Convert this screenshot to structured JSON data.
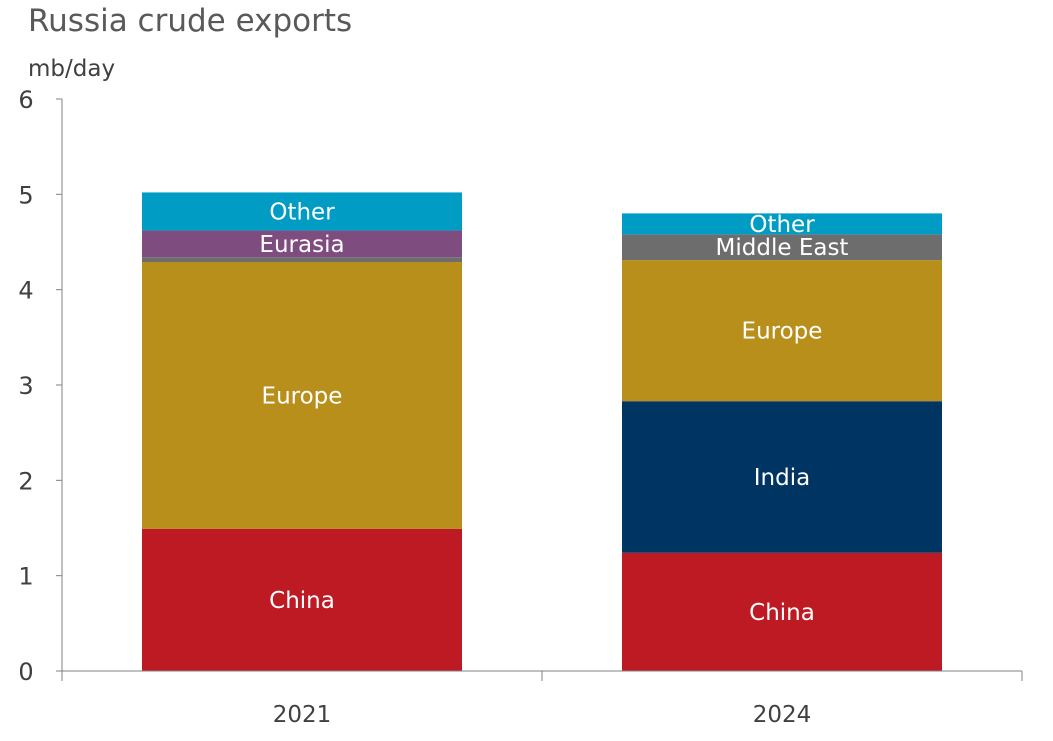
{
  "chart_data": {
    "type": "bar",
    "stacked": true,
    "title": "Russia crude exports",
    "unit_label": "mb/day",
    "ylim": [
      0,
      6
    ],
    "yticks": [
      "0",
      "1",
      "2",
      "3",
      "4",
      "5",
      "6"
    ],
    "grid": false,
    "categories": [
      "2021",
      "2024"
    ],
    "series": [
      {
        "name": "China",
        "color": "#BE1A24",
        "values": [
          1.49,
          1.24
        ]
      },
      {
        "name": "India",
        "color": "#003463",
        "values": [
          0.0,
          1.59
        ]
      },
      {
        "name": "Europe",
        "color": "#B98F1B",
        "values": [
          2.8,
          1.48
        ]
      },
      {
        "name": "Middle East",
        "color": "#6D6D6D",
        "values": [
          0.05,
          0.27
        ]
      },
      {
        "name": "Eurasia",
        "color": "#7F4C80",
        "values": [
          0.28,
          0.0
        ]
      },
      {
        "name": "Other",
        "color": "#009CC4",
        "values": [
          0.4,
          0.22
        ]
      }
    ],
    "segment_labels": [
      [
        "China",
        "",
        "Europe",
        "",
        "Eurasia",
        "Other"
      ],
      [
        "China",
        "India",
        "Europe",
        "Middle East",
        "",
        "Other"
      ]
    ]
  }
}
